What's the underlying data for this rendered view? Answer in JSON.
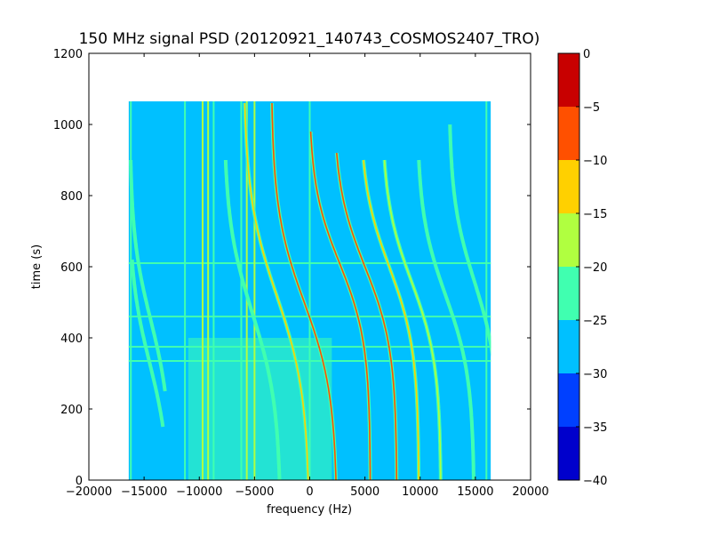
{
  "chart_data": {
    "type": "heatmap",
    "title": "150 MHz signal PSD (20120921_140743_COSMOS2407_TRO)",
    "xlabel": "frequency (Hz)",
    "ylabel": "time (s)",
    "xlim": [
      -20000,
      20000
    ],
    "ylim": [
      0,
      1200
    ],
    "x_ticks": [
      -20000,
      -15000,
      -10000,
      -5000,
      0,
      5000,
      10000,
      15000,
      20000
    ],
    "x_tick_labels": [
      "−20000",
      "−15000",
      "−10000",
      "−5000",
      "0",
      "5000",
      "10000",
      "15000",
      "20000"
    ],
    "y_ticks": [
      0,
      200,
      400,
      600,
      800,
      1000,
      1200
    ],
    "y_tick_labels": [
      "0",
      "200",
      "400",
      "600",
      "800",
      "1000",
      "1200"
    ],
    "data_extent": {
      "x": [
        -16400,
        16400
      ],
      "y": [
        0,
        1065
      ]
    },
    "background_level": -27,
    "colorbar": {
      "range": [
        -40,
        0
      ],
      "ticks": [
        0,
        -5,
        -10,
        -15,
        -20,
        -25,
        -30,
        -35,
        -40
      ],
      "tick_labels": [
        "0",
        "−5",
        "−10",
        "−15",
        "−20",
        "−25",
        "−30",
        "−35",
        "−40"
      ],
      "bands": [
        {
          "from": -40,
          "to": -35,
          "color": "#0000cc"
        },
        {
          "from": -35,
          "to": -30,
          "color": "#0040ff"
        },
        {
          "from": -30,
          "to": -25,
          "color": "#00c0ff"
        },
        {
          "from": -25,
          "to": -20,
          "color": "#40ffb0"
        },
        {
          "from": -20,
          "to": -15,
          "color": "#b0ff40"
        },
        {
          "from": -15,
          "to": -10,
          "color": "#ffd000"
        },
        {
          "from": -10,
          "to": -5,
          "color": "#ff5000"
        },
        {
          "from": -5,
          "to": 0,
          "color": "#c80000"
        }
      ]
    },
    "doppler_tracks": [
      {
        "f_center": -14400,
        "t_center": 450,
        "sweep_half": 1900,
        "t_halfwidth": 240,
        "t_start": 250,
        "t_end": 900,
        "level": -22
      },
      {
        "f_center": -14500,
        "t_center": 330,
        "sweep_half": 1900,
        "t_halfwidth": 240,
        "t_start": 150,
        "t_end": 620,
        "level": -22
      },
      {
        "f_center": -5200,
        "t_center": 470,
        "sweep_half": 2600,
        "t_halfwidth": 260,
        "t_start": 0,
        "t_end": 900,
        "level": -20
      },
      {
        "f_center": -3000,
        "t_center": 520,
        "sweep_half": 3000,
        "t_halfwidth": 280,
        "t_start": 0,
        "t_end": 1060,
        "level": -13
      },
      {
        "f_center": -500,
        "t_center": 500,
        "sweep_half": 3000,
        "t_halfwidth": 260,
        "t_start": 0,
        "t_end": 1060,
        "level": -9
      },
      {
        "f_center": 2700,
        "t_center": 610,
        "sweep_half": 2800,
        "t_halfwidth": 220,
        "t_start": 0,
        "t_end": 980,
        "level": -6
      },
      {
        "f_center": 5000,
        "t_center": 600,
        "sweep_half": 2900,
        "t_halfwidth": 230,
        "t_start": 0,
        "t_end": 920,
        "level": -9
      },
      {
        "f_center": 7200,
        "t_center": 600,
        "sweep_half": 2700,
        "t_halfwidth": 230,
        "t_start": 0,
        "t_end": 900,
        "level": -12
      },
      {
        "f_center": 9200,
        "t_center": 560,
        "sweep_half": 2700,
        "t_halfwidth": 230,
        "t_start": 0,
        "t_end": 900,
        "level": -17
      },
      {
        "f_center": 12300,
        "t_center": 520,
        "sweep_half": 2600,
        "t_halfwidth": 230,
        "t_start": 0,
        "t_end": 900,
        "level": -20
      },
      {
        "f_center": 14900,
        "t_center": 560,
        "sweep_half": 2300,
        "t_halfwidth": 230,
        "t_start": 0,
        "t_end": 1000,
        "level": -22
      }
    ],
    "vertical_lines": [
      {
        "f": -16200,
        "t_start": 0,
        "t_end": 1065,
        "level": -22
      },
      {
        "f": -11300,
        "t_start": 0,
        "t_end": 1065,
        "level": -23
      },
      {
        "f": -9700,
        "t_start": 0,
        "t_end": 1065,
        "level": -19
      },
      {
        "f": -9200,
        "t_start": 0,
        "t_end": 1065,
        "level": -18
      },
      {
        "f": -8700,
        "t_start": 0,
        "t_end": 1065,
        "level": -20
      },
      {
        "f": -6200,
        "t_start": 0,
        "t_end": 1065,
        "level": -22
      },
      {
        "f": -5700,
        "t_start": 0,
        "t_end": 1065,
        "level": -18
      },
      {
        "f": -5000,
        "t_start": 0,
        "t_end": 1065,
        "level": -18
      },
      {
        "f": 0,
        "t_start": 0,
        "t_end": 1065,
        "level": -23
      },
      {
        "f": 16000,
        "t_start": 0,
        "t_end": 1065,
        "level": -22
      }
    ],
    "horizontal_lines": [
      {
        "t": 610,
        "level": -23
      },
      {
        "t": 460,
        "level": -23
      },
      {
        "t": 375,
        "level": -23
      },
      {
        "t": 335,
        "level": -23
      }
    ],
    "noise_region": {
      "f_range": [
        -11000,
        2000
      ],
      "t_range": [
        0,
        400
      ],
      "level": -23
    }
  }
}
